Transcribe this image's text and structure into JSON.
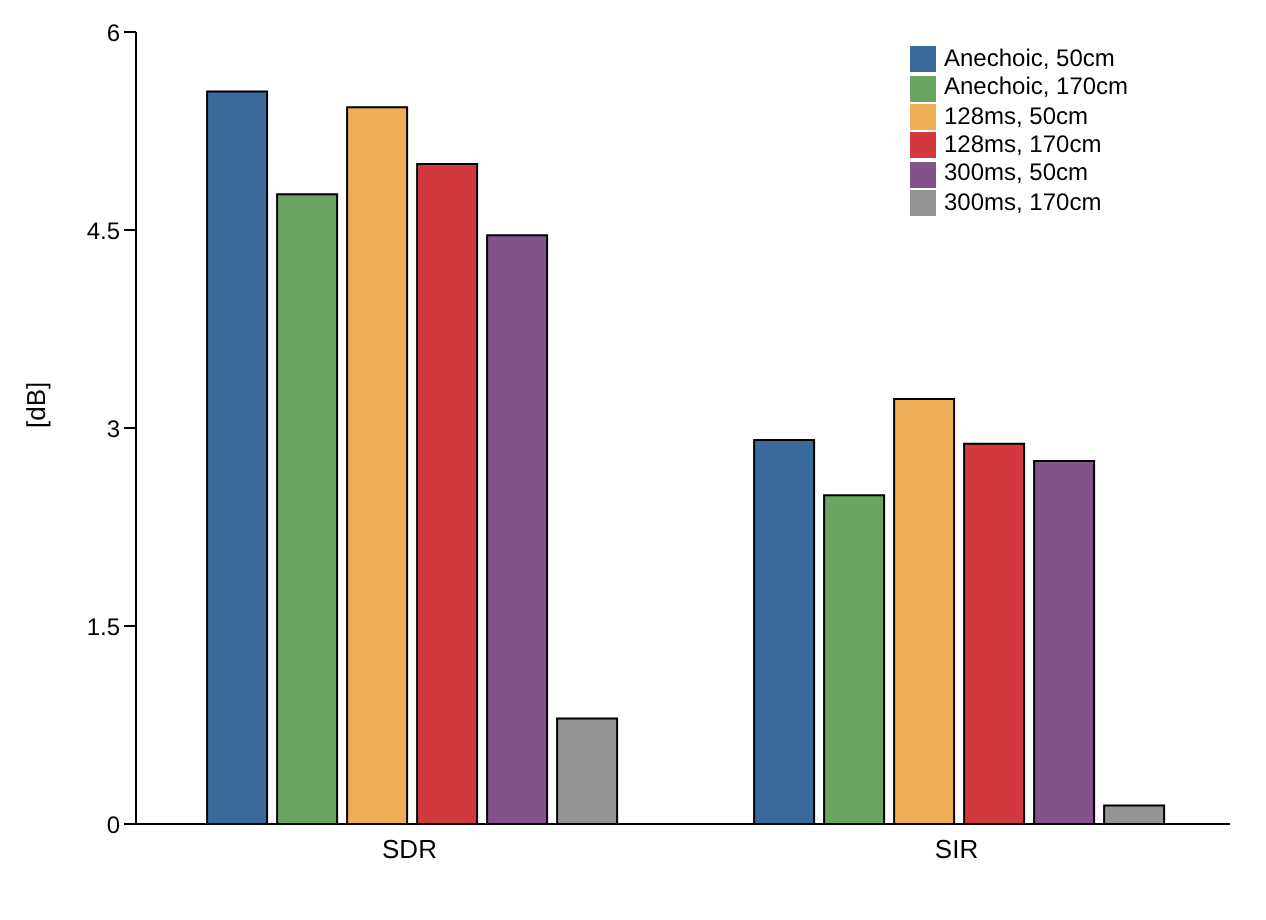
{
  "chart_data": {
    "type": "bar",
    "ylabel": "[dB]",
    "categories": [
      "SDR",
      "SIR"
    ],
    "series": [
      {
        "name": "Anechoic, 50cm",
        "color": "#3a6a9c",
        "values": [
          5.55,
          2.91
        ]
      },
      {
        "name": "Anechoic, 170cm",
        "color": "#6aa561",
        "values": [
          4.77,
          2.49
        ]
      },
      {
        "name": "128ms, 50cm",
        "color": "#efad55",
        "values": [
          5.43,
          3.22
        ]
      },
      {
        "name": "128ms, 170cm",
        "color": "#d1393f",
        "values": [
          5.0,
          2.88
        ]
      },
      {
        "name": "300ms, 50cm",
        "color": "#84528b",
        "values": [
          4.46,
          2.75
        ]
      },
      {
        "name": "300ms, 170cm",
        "color": "#949494",
        "values": [
          0.8,
          0.14
        ]
      }
    ],
    "ylim": [
      0,
      6
    ],
    "yticks": [
      0,
      1.5,
      3,
      4.5,
      6
    ],
    "grid": false,
    "legend": "top right"
  }
}
